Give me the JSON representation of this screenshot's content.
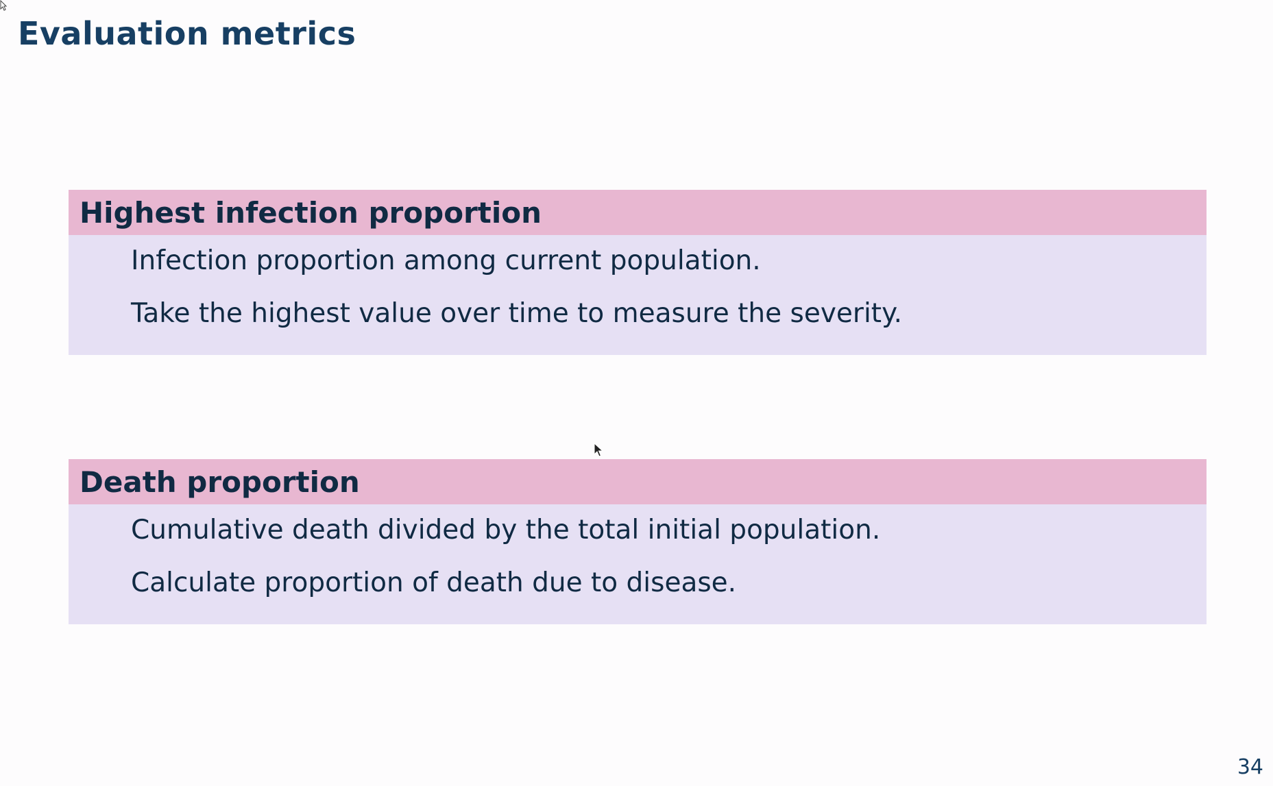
{
  "slide": {
    "title": "Evaluation metrics",
    "page_number": "34"
  },
  "blocks": [
    {
      "header": "Highest infection proportion",
      "lines": [
        "Infection proportion among current population.",
        "Take the highest value over time to measure the severity."
      ]
    },
    {
      "header": "Death proportion",
      "lines": [
        "Cumulative death divided by the total initial population.",
        "Calculate proportion of death due to disease."
      ]
    }
  ],
  "colors": {
    "title": "#173f63",
    "block_header_bg": "#e8b7d1",
    "block_body_bg": "#e6e0f4",
    "text": "#102a43"
  },
  "icons": {
    "pointer": "mouse-pointer-icon"
  }
}
